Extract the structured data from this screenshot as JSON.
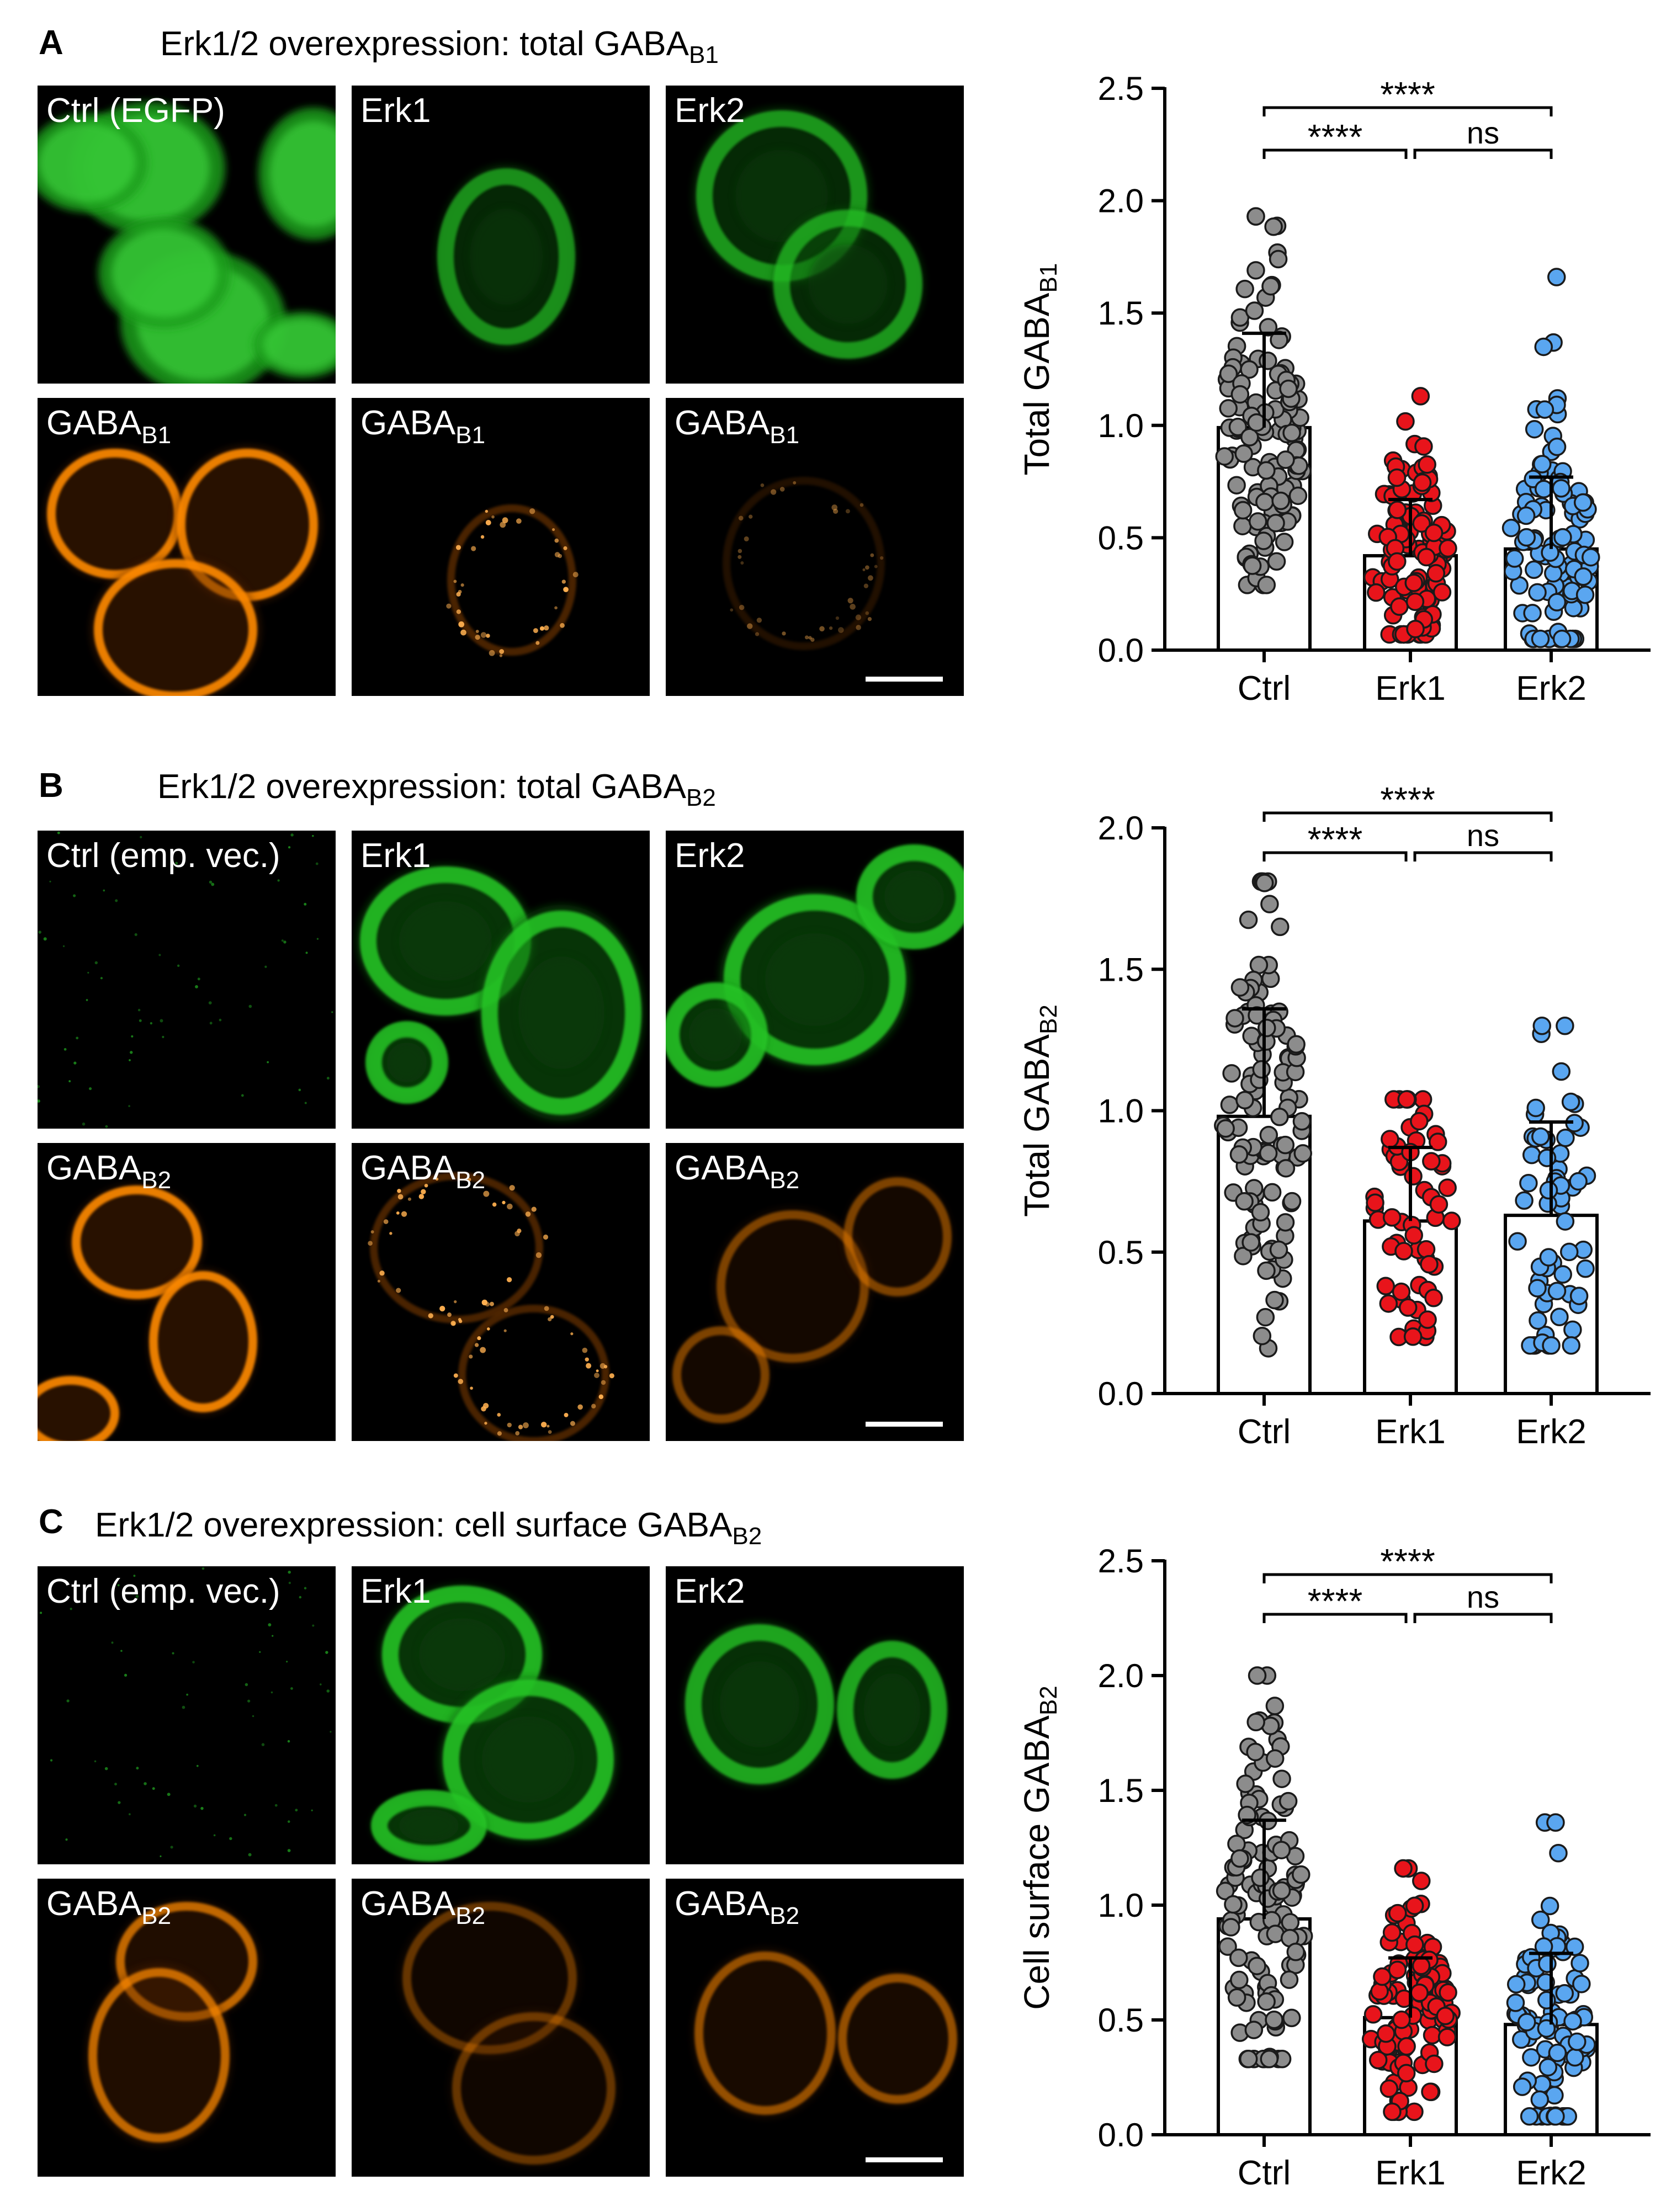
{
  "panels": [
    {
      "letter": "A",
      "title_main": "Erk1/2 overexpression: total GABA",
      "title_sub": "B1",
      "images": {
        "top": [
          {
            "label": "Ctrl (EGFP)",
            "label_sub": ""
          },
          {
            "label": "Erk1",
            "label_sub": ""
          },
          {
            "label": "Erk2",
            "label_sub": ""
          }
        ],
        "bottom": [
          {
            "label": "GABA",
            "label_sub": "B1"
          },
          {
            "label": "GABA",
            "label_sub": "B1"
          },
          {
            "label": "GABA",
            "label_sub": "B1"
          }
        ]
      }
    },
    {
      "letter": "B",
      "title_main": "Erk1/2 overexpression: total GABA",
      "title_sub": "B2",
      "images": {
        "top": [
          {
            "label": "Ctrl (emp. vec.)",
            "label_sub": ""
          },
          {
            "label": "Erk1",
            "label_sub": ""
          },
          {
            "label": "Erk2",
            "label_sub": ""
          }
        ],
        "bottom": [
          {
            "label": "GABA",
            "label_sub": "B2"
          },
          {
            "label": "GABA",
            "label_sub": "B2"
          },
          {
            "label": "GABA",
            "label_sub": "B2"
          }
        ]
      }
    },
    {
      "letter": "C",
      "title_main": "Erk1/2 overexpression: cell surface GABA",
      "title_sub": "B2",
      "images": {
        "top": [
          {
            "label": "Ctrl (emp. vec.)",
            "label_sub": ""
          },
          {
            "label": "Erk1",
            "label_sub": ""
          },
          {
            "label": "Erk2",
            "label_sub": ""
          }
        ],
        "bottom": [
          {
            "label": "GABA",
            "label_sub": "B2"
          },
          {
            "label": "GABA",
            "label_sub": "B2"
          },
          {
            "label": "GABA",
            "label_sub": "B2"
          }
        ]
      }
    }
  ],
  "colors": {
    "ctrl_points": "#8c8c8c",
    "erk1_points": "#e8141b",
    "erk2_points": "#5aa6f0",
    "green_channel": "#28c828",
    "orange_channel": "#ff8a00"
  },
  "chart_data": [
    {
      "type": "bar",
      "panel": "A",
      "categories": [
        "Ctrl",
        "Erk1",
        "Erk2"
      ],
      "values": [
        0.99,
        0.42,
        0.45
      ],
      "sd": [
        0.42,
        0.25,
        0.32
      ],
      "ylabel_main": "Total GABA",
      "ylabel_sub": "B1",
      "ylim": [
        0,
        2.5
      ],
      "yticks": [
        "0.0",
        "0.5",
        "1.0",
        "1.5",
        "2.0",
        "2.5"
      ],
      "n_points": [
        120,
        110,
        100
      ],
      "point_ranges": [
        [
          0.29,
          1.93
        ],
        [
          0.07,
          1.13
        ],
        [
          0.05,
          1.66
        ]
      ],
      "significance": [
        {
          "from": "Ctrl",
          "to": "Erk1",
          "label": "****"
        },
        {
          "from": "Erk1",
          "to": "Erk2",
          "label": "ns"
        },
        {
          "from": "Ctrl",
          "to": "Erk2",
          "label": "****"
        }
      ],
      "grid": false
    },
    {
      "type": "bar",
      "panel": "B",
      "categories": [
        "Ctrl",
        "Erk1",
        "Erk2"
      ],
      "values": [
        0.98,
        0.61,
        0.63
      ],
      "sd": [
        0.38,
        0.26,
        0.33
      ],
      "ylabel_main": "Total GABA",
      "ylabel_sub": "B2",
      "ylim": [
        0,
        2.0
      ],
      "yticks": [
        "0.0",
        "0.5",
        "1.0",
        "1.5",
        "2.0"
      ],
      "n_points": [
        110,
        60,
        60
      ],
      "point_ranges": [
        [
          0.16,
          1.81
        ],
        [
          0.2,
          1.04
        ],
        [
          0.17,
          1.3
        ]
      ],
      "significance": [
        {
          "from": "Ctrl",
          "to": "Erk1",
          "label": "****"
        },
        {
          "from": "Erk1",
          "to": "Erk2",
          "label": "ns"
        },
        {
          "from": "Ctrl",
          "to": "Erk2",
          "label": "****"
        }
      ],
      "grid": false
    },
    {
      "type": "bar",
      "panel": "C",
      "categories": [
        "Ctrl",
        "Erk1",
        "Erk2"
      ],
      "values": [
        0.94,
        0.51,
        0.48
      ],
      "sd": [
        0.43,
        0.26,
        0.31
      ],
      "ylabel_main": "Cell surface GABA",
      "ylabel_sub": "B2",
      "ylim": [
        0,
        2.5
      ],
      "yticks": [
        "0.0",
        "0.5",
        "1.0",
        "1.5",
        "2.0",
        "2.5"
      ],
      "n_points": [
        120,
        110,
        90
      ],
      "point_ranges": [
        [
          0.33,
          2.0
        ],
        [
          0.1,
          1.16
        ],
        [
          0.08,
          1.36
        ]
      ],
      "significance": [
        {
          "from": "Ctrl",
          "to": "Erk1",
          "label": "****"
        },
        {
          "from": "Erk1",
          "to": "Erk2",
          "label": "ns"
        },
        {
          "from": "Ctrl",
          "to": "Erk2",
          "label": "****"
        }
      ],
      "grid": false
    }
  ]
}
